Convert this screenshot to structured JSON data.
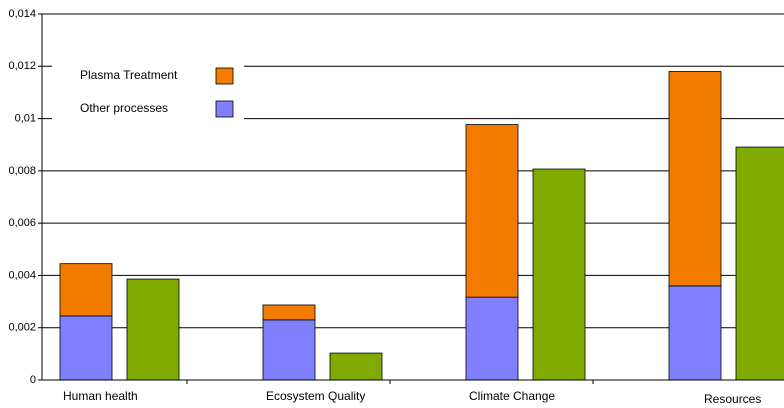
{
  "chart_data": {
    "type": "stacked-bar",
    "categories": [
      "Human health",
      "Ecosystem Quality",
      "Climate Change",
      "Resources"
    ],
    "series": [
      {
        "name": "Other processes",
        "color": "#8080ff",
        "stack": "a",
        "values": [
          0.00245,
          0.0023,
          0.00317,
          0.0036
        ]
      },
      {
        "name": "Plasma Treatment",
        "color": "#f27b00",
        "stack": "a",
        "values": [
          0.002,
          0.00057,
          0.0066,
          0.0082
        ]
      },
      {
        "color": "#80aa00",
        "stack": "b",
        "values": [
          0.00386,
          0.00103,
          0.00807,
          0.00891
        ]
      }
    ],
    "ylim": [
      0,
      0.014
    ],
    "yticks": [
      0,
      {
        "value": 0.002,
        "label": "0,002"
      },
      {
        "value": 0.004,
        "label": "0,004"
      },
      {
        "value": 0.006,
        "label": "0,006"
      },
      {
        "value": 0.008,
        "label": "0,008"
      },
      {
        "value": 0.01,
        "label": "0,01"
      },
      {
        "value": 0.012,
        "label": "0,012"
      },
      {
        "value": 0.014,
        "label": "0,014"
      }
    ],
    "grid": true
  }
}
